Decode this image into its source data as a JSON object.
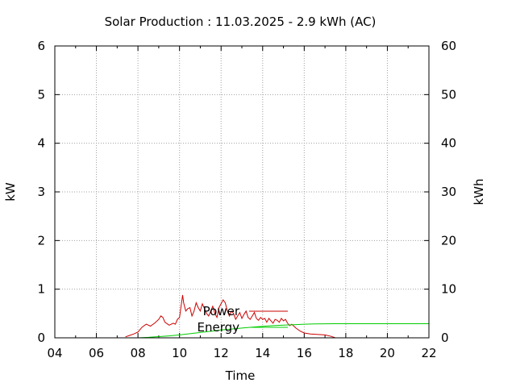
{
  "chart_data": {
    "type": "line",
    "title": "Solar Production : 11.03.2025 - 2.9 kWh (AC)",
    "xlabel": "Time",
    "ylabel": "kW",
    "y2label": "kWh",
    "xlim": [
      4,
      22
    ],
    "ylim": [
      0,
      6
    ],
    "y2lim": [
      0,
      60
    ],
    "xticks": [
      4,
      6,
      8,
      10,
      12,
      14,
      16,
      18,
      20,
      22
    ],
    "xticklabels": [
      "04",
      "06",
      "08",
      "10",
      "12",
      "14",
      "16",
      "18",
      "20",
      "22"
    ],
    "yticks": [
      0,
      1,
      2,
      3,
      4,
      5,
      6
    ],
    "y2ticks": [
      0,
      10,
      20,
      30,
      40,
      50,
      60
    ],
    "grid": true,
    "legend_position": "inside, lower-center",
    "series": [
      {
        "name": "Power",
        "axis": "left",
        "unit": "kW",
        "color": "#cc0000",
        "x": [
          7.4,
          7.6,
          7.8,
          8.0,
          8.2,
          8.4,
          8.6,
          8.8,
          9.0,
          9.1,
          9.2,
          9.3,
          9.5,
          9.7,
          9.8,
          9.9,
          10.0,
          10.15,
          10.2,
          10.3,
          10.4,
          10.5,
          10.6,
          10.7,
          10.8,
          10.9,
          11.0,
          11.1,
          11.2,
          11.3,
          11.4,
          11.5,
          11.6,
          11.7,
          11.8,
          11.9,
          12.0,
          12.1,
          12.2,
          12.3,
          12.4,
          12.5,
          12.6,
          12.7,
          12.8,
          12.9,
          13.0,
          13.1,
          13.2,
          13.3,
          13.4,
          13.5,
          13.6,
          13.7,
          13.8,
          13.9,
          14.0,
          14.1,
          14.2,
          14.3,
          14.4,
          14.5,
          14.6,
          14.7,
          14.8,
          14.9,
          15.0,
          15.1,
          15.2,
          15.3,
          15.4,
          15.6,
          15.8,
          16.0,
          16.3,
          16.6,
          17.0,
          17.3,
          17.5
        ],
        "values": [
          0.02,
          0.05,
          0.08,
          0.12,
          0.22,
          0.28,
          0.24,
          0.3,
          0.38,
          0.45,
          0.42,
          0.32,
          0.26,
          0.3,
          0.28,
          0.38,
          0.42,
          0.88,
          0.72,
          0.55,
          0.6,
          0.62,
          0.45,
          0.55,
          0.72,
          0.62,
          0.55,
          0.7,
          0.6,
          0.5,
          0.45,
          0.55,
          0.65,
          0.5,
          0.42,
          0.62,
          0.7,
          0.78,
          0.72,
          0.55,
          0.45,
          0.55,
          0.5,
          0.38,
          0.45,
          0.52,
          0.4,
          0.48,
          0.55,
          0.42,
          0.38,
          0.45,
          0.52,
          0.4,
          0.36,
          0.42,
          0.38,
          0.4,
          0.32,
          0.4,
          0.35,
          0.3,
          0.38,
          0.36,
          0.32,
          0.4,
          0.35,
          0.38,
          0.3,
          0.25,
          0.28,
          0.2,
          0.14,
          0.1,
          0.08,
          0.07,
          0.06,
          0.03,
          0.0
        ]
      },
      {
        "name": "Energy",
        "axis": "right",
        "unit": "kWh",
        "color": "#00cc00",
        "x": [
          8.0,
          8.5,
          9.0,
          9.5,
          10.0,
          10.5,
          11.0,
          11.5,
          12.0,
          12.5,
          13.0,
          13.5,
          14.0,
          14.5,
          15.0,
          15.5,
          16.0,
          16.5,
          17.0,
          17.5,
          22.0
        ],
        "values": [
          0.0,
          0.1,
          0.25,
          0.4,
          0.6,
          0.85,
          1.1,
          1.35,
          1.6,
          1.8,
          2.0,
          2.2,
          2.35,
          2.5,
          2.6,
          2.7,
          2.8,
          2.85,
          2.88,
          2.9,
          2.9
        ]
      }
    ]
  }
}
